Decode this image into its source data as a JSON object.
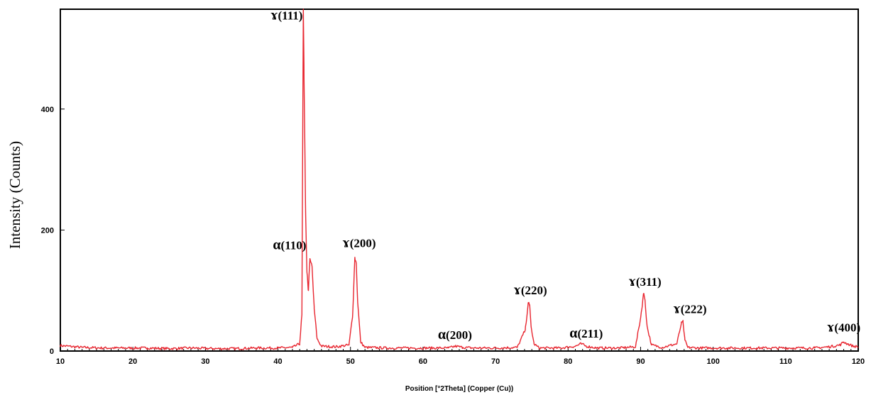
{
  "chart_data": {
    "type": "line",
    "title": "",
    "xlabel": "Position [°2Theta] (Copper (Cu))",
    "ylabel": "Intensity (Counts)",
    "xlim": [
      10,
      120
    ],
    "ylim": [
      0,
      565
    ],
    "xticks": [
      10,
      20,
      30,
      40,
      50,
      60,
      70,
      80,
      90,
      100,
      110,
      120
    ],
    "yticks": [
      0,
      200,
      400
    ],
    "grid": false,
    "line_color": "#e8252f",
    "series": [
      {
        "x": [
          10,
          13,
          16,
          19,
          22,
          25,
          28,
          31,
          34,
          37,
          40,
          42,
          43.0,
          43.3,
          43.5,
          43.6,
          43.8,
          44.0,
          44.2,
          44.4,
          44.7,
          45.0,
          45.4,
          46,
          48,
          49.8,
          50.3,
          50.6,
          50.8,
          51.0,
          51.4,
          52,
          55,
          58,
          61,
          63.5,
          64.5,
          65.5,
          67,
          70,
          73,
          74.1,
          74.5,
          74.7,
          74.9,
          75.3,
          76,
          79,
          81,
          81.8,
          82.5,
          84,
          87,
          89.3,
          90.0,
          90.4,
          90.6,
          90.9,
          91.5,
          93,
          95,
          95.6,
          95.85,
          96.1,
          96.5,
          98,
          102,
          106,
          110,
          114,
          116,
          117.5,
          118.0,
          118.5,
          119.3,
          120
        ],
        "y": [
          9,
          6,
          5,
          5,
          5,
          4,
          5,
          4,
          4,
          5,
          5,
          6,
          12,
          60,
          565,
          450,
          240,
          130,
          100,
          150,
          140,
          70,
          20,
          8,
          7,
          10,
          60,
          155,
          145,
          80,
          15,
          6,
          5,
          5,
          5,
          5,
          8,
          6,
          5,
          5,
          6,
          35,
          80,
          75,
          40,
          12,
          5,
          5,
          8,
          12,
          8,
          5,
          5,
          7,
          55,
          95,
          85,
          40,
          10,
          6,
          12,
          45,
          48,
          18,
          6,
          5,
          5,
          5,
          5,
          5,
          7,
          10,
          15,
          12,
          8,
          7
        ]
      }
    ],
    "annotations": [
      {
        "symbol": "ɤ",
        "text": "(111)",
        "x": 41.2,
        "y": 548
      },
      {
        "symbol": "α",
        "text": "(110)",
        "x": 41.6,
        "y": 168
      },
      {
        "symbol": "ɤ",
        "text": "(200)",
        "x": 51.2,
        "y": 172
      },
      {
        "symbol": "α",
        "text": "(200)",
        "x": 64.4,
        "y": 20
      },
      {
        "symbol": "ɤ",
        "text": "(220)",
        "x": 74.8,
        "y": 94
      },
      {
        "symbol": "α",
        "text": "(211)",
        "x": 82.5,
        "y": 22
      },
      {
        "symbol": "ɤ",
        "text": "(311)",
        "x": 90.6,
        "y": 108
      },
      {
        "symbol": "ɤ",
        "text": "(222)",
        "x": 96.8,
        "y": 63
      },
      {
        "symbol": "ɤ",
        "text": "(400)",
        "x": 118.0,
        "y": 32
      }
    ]
  }
}
